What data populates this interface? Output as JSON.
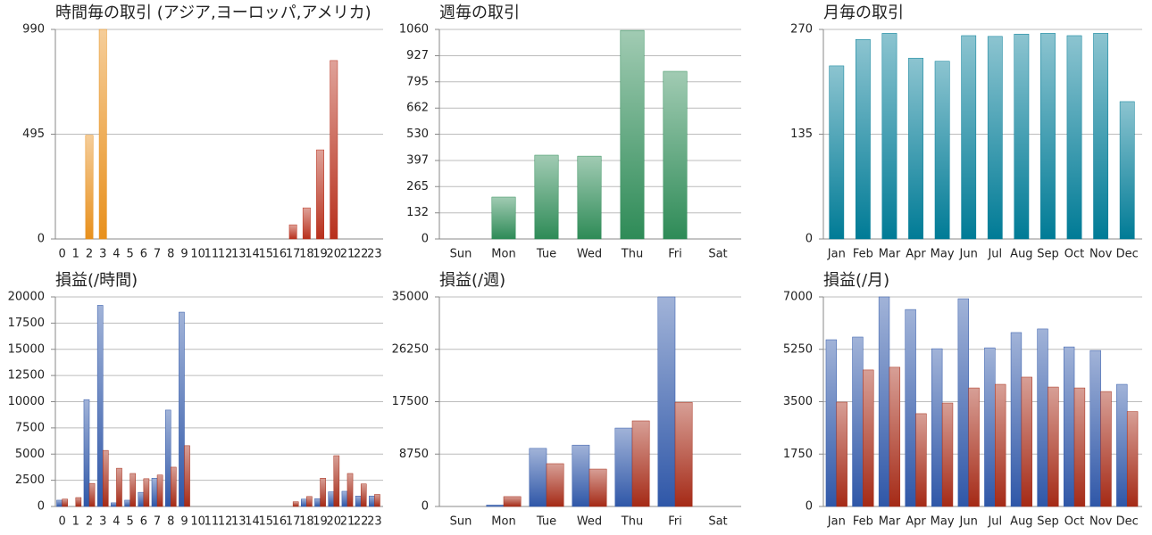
{
  "chart_data": [
    {
      "type": "bar",
      "title": "時間毎の取引 (アジア,ヨーロッパ,アメリカ)",
      "categories": [
        "0",
        "1",
        "2",
        "3",
        "4",
        "5",
        "6",
        "7",
        "8",
        "9",
        "10",
        "11",
        "12",
        "13",
        "14",
        "15",
        "16",
        "17",
        "18",
        "19",
        "20",
        "21",
        "22",
        "23"
      ],
      "values": [
        0,
        0,
        490,
        990,
        0,
        0,
        0,
        0,
        0,
        0,
        0,
        0,
        0,
        0,
        0,
        0,
        0,
        67,
        147,
        421,
        843,
        0,
        0,
        0
      ],
      "colors": [
        "#c0504d",
        "#c0504d",
        "#e8901c",
        "#e8901c",
        "#c0504d",
        "#c0504d",
        "#c0504d",
        "#c0504d",
        "#c0504d",
        "#c0504d",
        "#c0504d",
        "#c0504d",
        "#c0504d",
        "#c0504d",
        "#c0504d",
        "#c0504d",
        "#c0504d",
        "#b8301c",
        "#b8301c",
        "#b8301c",
        "#b8301c",
        "#b8301c",
        "#b8301c",
        "#b8301c"
      ],
      "ylim": [
        0,
        990
      ],
      "yticks": [
        0,
        495,
        990
      ],
      "grid": true
    },
    {
      "type": "bar",
      "title": "週毎の取引",
      "categories": [
        "Sun",
        "Mon",
        "Tue",
        "Wed",
        "Thu",
        "Fri",
        "Sat"
      ],
      "values": [
        0,
        212,
        424,
        419,
        1055,
        848,
        0
      ],
      "color": "#2e8b57",
      "ylim": [
        0,
        1060
      ],
      "yticks": [
        0,
        132,
        265,
        397,
        530,
        662,
        795,
        927,
        1060
      ],
      "grid": true
    },
    {
      "type": "bar",
      "title": "月毎の取引",
      "categories": [
        "Jan",
        "Feb",
        "Mar",
        "Apr",
        "May",
        "Jun",
        "Jul",
        "Aug",
        "Sep",
        "Oct",
        "Nov",
        "Dec"
      ],
      "values": [
        223,
        257,
        265,
        233,
        229,
        262,
        261,
        264,
        265,
        262,
        265,
        177
      ],
      "color": "#007b96",
      "ylim": [
        0,
        270
      ],
      "yticks": [
        0,
        135,
        270
      ],
      "grid": true
    },
    {
      "type": "bar",
      "title": "損益(/時間)",
      "categories": [
        "0",
        "1",
        "2",
        "3",
        "4",
        "5",
        "6",
        "7",
        "8",
        "9",
        "10",
        "11",
        "12",
        "13",
        "14",
        "15",
        "16",
        "17",
        "18",
        "19",
        "20",
        "21",
        "22",
        "23"
      ],
      "series": [
        {
          "color": "#2f57a8",
          "values": [
            600,
            0,
            10200,
            19200,
            350,
            600,
            1350,
            2700,
            9200,
            18550,
            0,
            0,
            0,
            0,
            0,
            0,
            0,
            0,
            700,
            750,
            1400,
            1450,
            1000,
            1000
          ]
        },
        {
          "color": "#a52a16",
          "values": [
            700,
            850,
            2200,
            5350,
            3650,
            3150,
            2650,
            3000,
            3750,
            5800,
            0,
            0,
            0,
            0,
            0,
            0,
            0,
            450,
            950,
            2700,
            4850,
            3150,
            2150,
            1150
          ]
        }
      ],
      "ylim": [
        0,
        20000
      ],
      "yticks": [
        0,
        2500,
        5000,
        7500,
        10000,
        12500,
        15000,
        17500,
        20000
      ],
      "grid": true
    },
    {
      "type": "bar",
      "title": "損益(/週)",
      "categories": [
        "Sun",
        "Mon",
        "Tue",
        "Wed",
        "Thu",
        "Fri",
        "Sat"
      ],
      "series": [
        {
          "color": "#2f57a8",
          "values": [
            0,
            250,
            9700,
            10250,
            13100,
            35000,
            0
          ]
        },
        {
          "color": "#a52a16",
          "values": [
            0,
            1650,
            7150,
            6250,
            14300,
            17400,
            0
          ]
        }
      ],
      "ylim": [
        0,
        35000
      ],
      "yticks": [
        0,
        8750,
        17500,
        26250,
        35000
      ],
      "grid": true
    },
    {
      "type": "bar",
      "title": "損益(/月)",
      "categories": [
        "Jan",
        "Feb",
        "Mar",
        "Apr",
        "May",
        "Jun",
        "Jul",
        "Aug",
        "Sep",
        "Oct",
        "Nov",
        "Dec"
      ],
      "series": [
        {
          "color": "#2f57a8",
          "values": [
            5570,
            5660,
            7000,
            6580,
            5270,
            6940,
            5300,
            5810,
            5930,
            5330,
            5210,
            4080
          ]
        },
        {
          "color": "#a52a16",
          "values": [
            3485,
            4560,
            4650,
            3100,
            3455,
            3960,
            4080,
            4320,
            3990,
            3960,
            3840,
            3170
          ]
        }
      ],
      "ylim": [
        0,
        7000
      ],
      "yticks": [
        0,
        1750,
        3500,
        5250,
        7000
      ],
      "grid": true
    }
  ]
}
